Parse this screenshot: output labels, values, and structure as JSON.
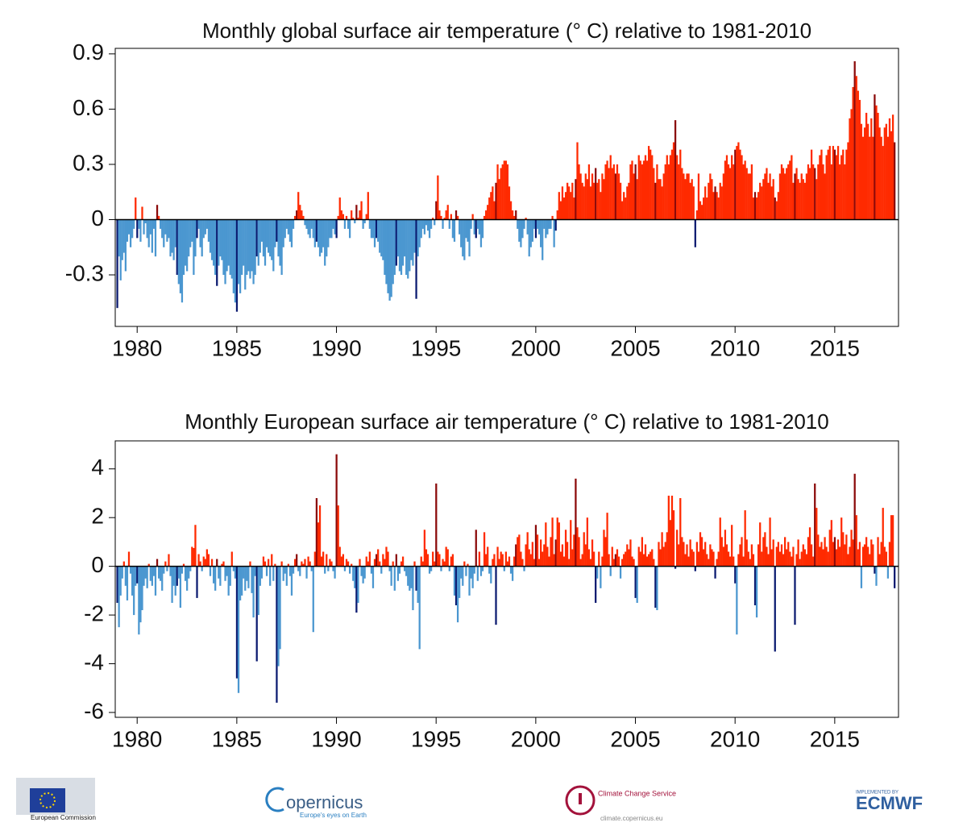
{
  "chart_data": [
    {
      "type": "bar",
      "title": "Monthly  global surface air temperature (° C) relative to 1981-2010",
      "x_start": 1979,
      "frequency": "monthly",
      "highlight": "January",
      "xlim": [
        1978.9,
        2018.2
      ],
      "xticks": [
        1980,
        1985,
        1990,
        1995,
        2000,
        2005,
        2010,
        2015
      ],
      "ylim": [
        -0.58,
        0.93
      ],
      "yticks": [
        0.9,
        0.6,
        0.3,
        0,
        -0.3
      ],
      "color_positive": "#ff2a00",
      "color_positive_highlight": "#8b0a0a",
      "color_negative": "#4b97d0",
      "color_negative_highlight": "#0b1a70",
      "values": [
        -0.48,
        -0.2,
        -0.33,
        -0.22,
        -0.18,
        -0.28,
        -0.12,
        -0.08,
        -0.15,
        -0.1,
        -0.05,
        0.12,
        -0.1,
        -0.05,
        -0.12,
        0.07,
        -0.08,
        -0.02,
        -0.1,
        -0.15,
        -0.08,
        -0.18,
        -0.05,
        -0.2,
        0.08,
        0.02,
        -0.05,
        -0.1,
        -0.15,
        -0.08,
        -0.12,
        -0.1,
        -0.2,
        -0.18,
        -0.22,
        -0.15,
        -0.3,
        -0.35,
        -0.4,
        -0.45,
        -0.3,
        -0.25,
        -0.28,
        -0.2,
        -0.15,
        -0.12,
        -0.3,
        -0.2,
        -0.1,
        -0.05,
        -0.15,
        -0.2,
        -0.1,
        -0.08,
        -0.05,
        -0.12,
        -0.18,
        -0.22,
        -0.25,
        -0.3,
        -0.36,
        -0.25,
        -0.2,
        -0.22,
        -0.3,
        -0.35,
        -0.28,
        -0.25,
        -0.3,
        -0.32,
        -0.4,
        -0.45,
        -0.5,
        -0.35,
        -0.4,
        -0.3,
        -0.25,
        -0.38,
        -0.3,
        -0.28,
        -0.32,
        -0.28,
        -0.35,
        -0.3,
        -0.2,
        -0.25,
        -0.18,
        -0.12,
        -0.2,
        -0.25,
        -0.15,
        -0.18,
        -0.2,
        -0.22,
        -0.28,
        -0.15,
        -0.12,
        -0.2,
        -0.25,
        -0.3,
        -0.15,
        -0.1,
        -0.05,
        -0.08,
        -0.12,
        -0.15,
        -0.05,
        0.02,
        0.05,
        0.15,
        0.08,
        0.05,
        0.02,
        -0.03,
        -0.05,
        -0.08,
        -0.1,
        -0.05,
        -0.1,
        -0.15,
        -0.12,
        -0.15,
        -0.2,
        -0.18,
        -0.15,
        -0.25,
        -0.2,
        -0.15,
        -0.1,
        -0.1,
        -0.05,
        -0.08,
        -0.1,
        0.02,
        0.12,
        0.05,
        0.03,
        -0.05,
        0.02,
        -0.05,
        -0.1,
        0.05,
        0.01,
        -0.02,
        0.08,
        0.01,
        0.05,
        0.1,
        -0.05,
        -0.02,
        0.03,
        0.15,
        -0.05,
        -0.1,
        -0.1,
        -0.15,
        -0.1,
        -0.12,
        -0.18,
        -0.2,
        -0.22,
        -0.3,
        -0.35,
        -0.4,
        -0.44,
        -0.42,
        -0.35,
        -0.3,
        -0.25,
        -0.2,
        -0.28,
        -0.3,
        -0.25,
        -0.2,
        -0.3,
        -0.32,
        -0.28,
        -0.22,
        -0.25,
        -0.18,
        -0.43,
        -0.2,
        -0.15,
        -0.1,
        -0.05,
        -0.08,
        -0.03,
        -0.06,
        -0.1,
        -0.05,
        0.01,
        -0.03,
        0.1,
        0.24,
        0.05,
        0.02,
        -0.05,
        0.01,
        0.05,
        0.08,
        -0.05,
        0.03,
        -0.1,
        -0.12,
        0.05,
        0.02,
        -0.08,
        -0.15,
        -0.2,
        -0.22,
        -0.1,
        -0.12,
        -0.2,
        -0.05,
        0.03,
        -0.08,
        -0.1,
        -0.05,
        -0.08,
        -0.15,
        -0.1,
        0.02,
        0.05,
        0.08,
        0.12,
        0.15,
        0.18,
        0.1,
        0.2,
        0.3,
        0.22,
        0.28,
        0.3,
        0.32,
        0.32,
        0.3,
        0.18,
        0.1,
        0.05,
        0.02,
        0.05,
        -0.05,
        -0.12,
        -0.15,
        -0.1,
        -0.05,
        0.01,
        -0.08,
        -0.2,
        -0.15,
        -0.12,
        -0.05,
        -0.1,
        -0.05,
        -0.08,
        -0.15,
        -0.22,
        -0.05,
        -0.1,
        -0.08,
        -0.05,
        -0.05,
        0.02,
        -0.15,
        -0.06,
        0.05,
        0.15,
        0.1,
        0.18,
        0.12,
        0.15,
        0.2,
        0.18,
        0.15,
        0.2,
        0.12,
        0.22,
        0.42,
        0.3,
        0.25,
        0.2,
        0.18,
        0.25,
        0.22,
        0.3,
        0.18,
        0.25,
        0.2,
        0.28,
        0.2,
        0.22,
        0.15,
        0.25,
        0.22,
        0.3,
        0.32,
        0.28,
        0.35,
        0.28,
        0.3,
        0.25,
        0.3,
        0.25,
        0.2,
        0.1,
        0.15,
        0.12,
        0.18,
        0.2,
        0.3,
        0.32,
        0.25,
        0.3,
        0.22,
        0.35,
        0.32,
        0.3,
        0.32,
        0.35,
        0.32,
        0.4,
        0.38,
        0.35,
        0.28,
        0.2,
        0.3,
        0.22,
        0.22,
        0.18,
        0.25,
        0.3,
        0.35,
        0.3,
        0.35,
        0.38,
        0.42,
        0.54,
        0.35,
        0.3,
        0.38,
        0.28,
        0.25,
        0.22,
        0.25,
        0.25,
        0.2,
        0.22,
        0.18,
        -0.15,
        0.05,
        0.25,
        0.1,
        0.08,
        0.12,
        0.18,
        0.12,
        0.2,
        0.25,
        0.22,
        0.15,
        0.18,
        0.15,
        0.12,
        0.2,
        0.18,
        0.25,
        0.32,
        0.35,
        0.3,
        0.28,
        0.35,
        0.3,
        0.38,
        0.4,
        0.42,
        0.38,
        0.35,
        0.3,
        0.32,
        0.28,
        0.25,
        0.25,
        0.3,
        0.12,
        0.15,
        0.12,
        0.15,
        0.2,
        0.18,
        0.22,
        0.25,
        0.28,
        0.2,
        0.25,
        0.18,
        0.22,
        0.12,
        0.1,
        0.15,
        0.25,
        0.3,
        0.28,
        0.25,
        0.28,
        0.3,
        0.32,
        0.35,
        0.2,
        0.25,
        0.28,
        0.22,
        0.2,
        0.25,
        0.22,
        0.2,
        0.25,
        0.3,
        0.28,
        0.38,
        0.3,
        0.28,
        0.22,
        0.3,
        0.35,
        0.38,
        0.3,
        0.25,
        0.35,
        0.38,
        0.4,
        0.3,
        0.4,
        0.38,
        0.35,
        0.4,
        0.3,
        0.35,
        0.38,
        0.3,
        0.38,
        0.42,
        0.55,
        0.6,
        0.72,
        0.86,
        0.78,
        0.7,
        0.65,
        0.52,
        0.45,
        0.5,
        0.58,
        0.52,
        0.45,
        0.55,
        0.45,
        0.68,
        0.62,
        0.58,
        0.5,
        0.45,
        0.4,
        0.5,
        0.52,
        0.45,
        0.55,
        0.48,
        0.57,
        0.42
      ]
    },
    {
      "type": "bar",
      "title": "Monthly  European surface air temperature (° C) relative to 1981-2010",
      "x_start": 1979,
      "frequency": "monthly",
      "highlight": "January",
      "xlim": [
        1978.9,
        2018.2
      ],
      "xticks": [
        1980,
        1985,
        1990,
        1995,
        2000,
        2005,
        2010,
        2015
      ],
      "ylim": [
        -6.2,
        5.15
      ],
      "yticks": [
        4,
        2,
        0,
        -2,
        -4,
        -6
      ],
      "color_positive": "#ff2a00",
      "color_positive_highlight": "#8b0a0a",
      "color_negative": "#4b97d0",
      "color_negative_highlight": "#0b1a70",
      "values": [
        -1.5,
        -2.5,
        -1.2,
        -0.5,
        0.2,
        -0.8,
        -1.4,
        0.6,
        -0.3,
        -1.2,
        -2,
        -0.8,
        -0.7,
        -2.8,
        -2.3,
        -1.8,
        -0.8,
        -0.5,
        -0.9,
        0.1,
        -0.6,
        -0.8,
        -0.4,
        -1.2,
        0.3,
        -0.5,
        -0.6,
        -1,
        -0.3,
        0.2,
        -0.2,
        0.5,
        -0.4,
        -1.5,
        -0.8,
        -1.2,
        -0.8,
        -0.5,
        -1.7,
        -0.3,
        0.1,
        -0.6,
        -1,
        -0.5,
        -0.2,
        0.8,
        0.75,
        1.7,
        -1.3,
        0.5,
        0.2,
        -0.2,
        0.4,
        0.3,
        0.7,
        0.5,
        -0.4,
        0.3,
        -0.7,
        -1,
        0.3,
        -0.5,
        -0.8,
        0.1,
        0.2,
        -0.6,
        -0.4,
        -1.2,
        -0.8,
        0.6,
        -0.2,
        -0.5,
        -4.6,
        -5.2,
        -1.4,
        -1.2,
        -0.5,
        -1,
        -0.6,
        -0.9,
        0.2,
        -1.1,
        -2.1,
        -0.4,
        -3.9,
        -2,
        -0.8,
        -0.5,
        0.4,
        0.2,
        -0.4,
        0.3,
        -0.8,
        0.5,
        -0.6,
        0.1,
        -5.6,
        -4.1,
        -3.4,
        0.2,
        -0.6,
        -0.3,
        -0.8,
        0.1,
        -0.4,
        -1.2,
        -0.3,
        0.3,
        0.5,
        -0.2,
        -0.4,
        0.2,
        0.1,
        0.3,
        -0.5,
        0.4,
        0.2,
        -0.2,
        -2.7,
        0.6,
        2.8,
        1.8,
        2.5,
        0.4,
        0.6,
        -0.3,
        0.5,
        -0.2,
        0.3,
        0.2,
        -0.2,
        -0.5,
        4.6,
        2.5,
        0.8,
        0.4,
        0.5,
        -0.2,
        0.3,
        0.2,
        -0.3,
        0.1,
        -0.6,
        -0.9,
        -1.9,
        -1.5,
        0.3,
        -0.4,
        -0.7,
        -0.5,
        0.4,
        0.2,
        0.6,
        -0.3,
        -0.9,
        0.3,
        0.5,
        0.7,
        0.2,
        -0.3,
        0.5,
        0.3,
        0.8,
        0.6,
        -0.2,
        -0.8,
        0.2,
        -1,
        0.5,
        -0.6,
        -0.3,
        0.2,
        0.4,
        -0.2,
        -0.4,
        -0.8,
        -1,
        -0.9,
        -1.8,
        0.2,
        -1,
        -1.5,
        -3.4,
        0.4,
        0.2,
        1.5,
        0.7,
        0.5,
        -0.3,
        -0.2,
        0.6,
        0.2,
        3.4,
        0.6,
        0.5,
        -0.2,
        0.3,
        0.2,
        0.8,
        0.7,
        -0.2,
        0.4,
        0.5,
        -1.2,
        -1.6,
        -2.3,
        -1.3,
        -0.5,
        -0.8,
        0.2,
        -0.4,
        0.1,
        -1.2,
        -0.5,
        -0.9,
        -0.3,
        1.5,
        -0.6,
        0.6,
        -0.4,
        -0.2,
        1.4,
        0.5,
        0.8,
        -0.3,
        -0.7,
        0.3,
        0.5,
        -2.4,
        0.8,
        0.3,
        0.6,
        0.5,
        -0.2,
        0.6,
        0.2,
        0.4,
        -0.3,
        -0.6,
        0.4,
        0.9,
        1.2,
        1.3,
        0.6,
        0.3,
        -0.2,
        0.9,
        1.4,
        0.7,
        0.5,
        1,
        0.3,
        1.7,
        1.3,
        0.3,
        1.1,
        0.6,
        0.9,
        1.8,
        0.8,
        0.4,
        1.2,
        2,
        0.5,
        1.1,
        2,
        1.8,
        0.6,
        0.9,
        0.4,
        1.5,
        1,
        0.3,
        1.9,
        0.7,
        1.3,
        3.6,
        1.6,
        1.2,
        0.3,
        0.5,
        1.4,
        0.9,
        2,
        0.7,
        0.3,
        1.1,
        0.6,
        -1.5,
        -0.5,
        0.6,
        -0.9,
        0.4,
        1.5,
        1.2,
        2.2,
        0.5,
        -0.4,
        0.8,
        0.3,
        0.5,
        0.7,
        0.4,
        -0.5,
        0.3,
        0.5,
        0.6,
        0.9,
        0.7,
        1.1,
        0.4,
        0.3,
        -1.3,
        -1.5,
        0.8,
        0.6,
        1.2,
        0.5,
        0.9,
        0.4,
        0.5,
        0.6,
        0.7,
        0.3,
        -1.7,
        -1.8,
        1,
        0.7,
        1.4,
        0.8,
        1,
        1.4,
        2.9,
        1.9,
        2.9,
        2.3,
        -0.1,
        1.5,
        0.9,
        2.8,
        1.2,
        1,
        0.5,
        0.9,
        0.4,
        1.1,
        0.7,
        0.6,
        -0.2,
        1,
        0.6,
        1.4,
        1.2,
        0.7,
        1,
        0.5,
        0.3,
        0.9,
        0.7,
        0.6,
        -0.5,
        0.3,
        0.6,
        2,
        1.2,
        0.8,
        1.5,
        0.9,
        0.6,
        0.4,
        1.7,
        0.4,
        -0.7,
        -2.8,
        0.5,
        0.9,
        1.2,
        0.4,
        2.3,
        1.1,
        0.6,
        0.3,
        0.9,
        0.5,
        -1.6,
        -2.1,
        0.9,
        1.8,
        0.6,
        1.2,
        1.4,
        0.8,
        0.5,
        2,
        0.7,
        1.1,
        -3.5,
        0.8,
        1,
        0.6,
        0.9,
        0.5,
        1.2,
        0.7,
        1,
        0.6,
        0.4,
        0.8,
        -2.4,
        0.5,
        1.1,
        0.3,
        0.6,
        0.9,
        0.7,
        0.5,
        1.2,
        1.6,
        0.9,
        0.4,
        3.4,
        2.4,
        1.3,
        0.8,
        1,
        0.7,
        1.2,
        0.8,
        0.6,
        1.5,
        1.9,
        1,
        1.2,
        0.7,
        1.1,
        0.8,
        2,
        1.4,
        0.9,
        1.3,
        0.5,
        0.8,
        1.5,
        1.1,
        3.8,
        2.1,
        0.7,
        1,
        -0.9,
        0.8,
        0.9,
        1.2,
        0.8,
        0.5,
        1.1,
        0.9,
        -0.3,
        -0.8,
        1.2,
        0.5,
        1,
        2.4,
        0.8,
        0.6,
        -0.5,
        1,
        2.1,
        2.1,
        -0.9
      ]
    }
  ],
  "logos": {
    "eu": "European Commission",
    "copernicus": "opernicus",
    "copernicus_tagline": "Europe's eyes on Earth",
    "c3s": "Climate Change Service",
    "c3s_url": "climate.copernicus.eu",
    "ecmwf_note": "IMPLEMENTED BY",
    "ecmwf": "ECMWF"
  }
}
